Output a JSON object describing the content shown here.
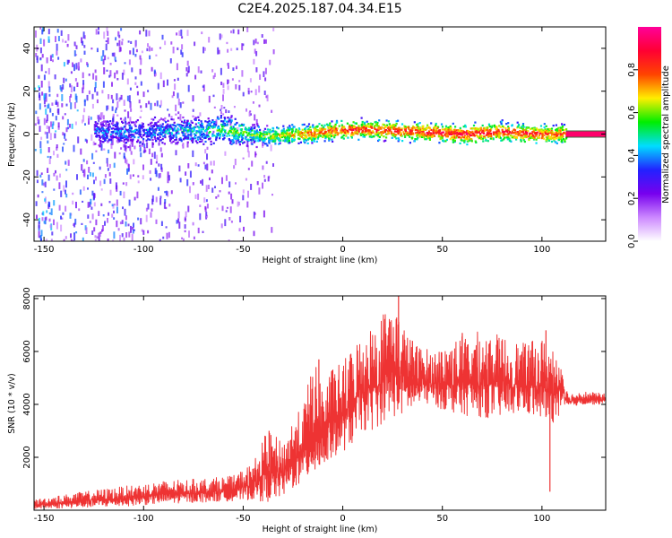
{
  "figure": {
    "title": "C2E4.2025.187.04.34.E15"
  },
  "chart_data": [
    {
      "type": "heatmap",
      "id": "spectrogram",
      "xlabel": "Height of straight line (km)",
      "ylabel": "Frequency (Hz)",
      "xlim": [
        -155,
        132
      ],
      "ylim": [
        -50,
        50
      ],
      "xticks": [
        -150,
        -100,
        -50,
        0,
        50,
        100
      ],
      "yticks": [
        -40,
        -20,
        0,
        20,
        40
      ],
      "colorbar": {
        "label": "Normalized spectral amplitude",
        "range": [
          0,
          1
        ],
        "ticks": [
          0.0,
          0.2,
          0.4,
          0.6,
          0.8
        ],
        "tick_labels": [
          "0.0",
          "0.2",
          "0.4",
          "0.6",
          "0.8"
        ],
        "colors": [
          "#ffffff",
          "#cc88ff",
          "#7700ee",
          "#2222ff",
          "#00ddff",
          "#00ee00",
          "#ffee00",
          "#ff4400",
          "#ff0033",
          "#ff0099"
        ]
      },
      "ridge": {
        "center_hz": [
          [
            -125,
            1
          ],
          [
            -100,
            1
          ],
          [
            -60,
            2
          ],
          [
            -40,
            -1
          ],
          [
            -20,
            0
          ],
          [
            0,
            2
          ],
          [
            20,
            2
          ],
          [
            40,
            1
          ],
          [
            60,
            0
          ],
          [
            80,
            1
          ],
          [
            100,
            0
          ],
          [
            112,
            0
          ]
        ],
        "peak_amplitude": [
          [
            -125,
            0.35
          ],
          [
            -90,
            0.4
          ],
          [
            -60,
            0.55
          ],
          [
            -40,
            0.6
          ],
          [
            -20,
            0.75
          ],
          [
            0,
            0.85
          ],
          [
            20,
            0.85
          ],
          [
            40,
            0.85
          ],
          [
            60,
            0.9
          ],
          [
            80,
            0.85
          ],
          [
            100,
            0.85
          ],
          [
            112,
            0.8
          ]
        ]
      },
      "steady_tone": {
        "x_range": [
          112,
          132
        ],
        "frequency_hz": 0,
        "amplitude": 0.95
      },
      "noise_region": {
        "x_range": [
          -155,
          -35
        ],
        "amplitude": [
          0.1,
          0.45
        ]
      }
    },
    {
      "type": "line",
      "id": "snr",
      "xlabel": "Height of straight line (km)",
      "ylabel": "SNR (10 * v/v)",
      "xlim": [
        -155,
        132
      ],
      "ylim": [
        0,
        8100
      ],
      "xticks": [
        -150,
        -100,
        -50,
        0,
        50,
        100
      ],
      "yticks": [
        2000,
        4000,
        6000,
        8000
      ],
      "color": "#ee3333",
      "envelope": {
        "x": [
          -155,
          -130,
          -110,
          -90,
          -70,
          -55,
          -45,
          -38,
          -30,
          -25,
          -20,
          -15,
          -10,
          -5,
          0,
          5,
          10,
          15,
          20,
          25,
          30,
          35,
          40,
          45,
          50,
          60,
          70,
          80,
          90,
          100,
          105,
          110,
          113,
          120,
          132
        ],
        "min": [
          50,
          100,
          150,
          250,
          300,
          350,
          400,
          300,
          500,
          800,
          1000,
          1300,
          1500,
          2000,
          2200,
          2500,
          3000,
          3000,
          3300,
          3500,
          3600,
          3800,
          4000,
          4000,
          3800,
          3600,
          3500,
          3500,
          3700,
          3400,
          3300,
          3500,
          3900,
          4000,
          4000
        ],
        "max": [
          400,
          700,
          900,
          1100,
          1200,
          1300,
          1800,
          3000,
          2600,
          3500,
          3900,
          5700,
          4800,
          5400,
          5600,
          6200,
          6800,
          7000,
          7500,
          8000,
          7100,
          6300,
          6200,
          6000,
          6200,
          6600,
          6800,
          6600,
          6300,
          6500,
          6200,
          6000,
          4400,
          4500,
          4400
        ]
      },
      "spikes": [
        [
          -37,
          3000
        ],
        [
          -12,
          5700
        ],
        [
          28,
          8100
        ],
        [
          35,
          6400
        ],
        [
          60,
          6700
        ],
        [
          102,
          6800
        ],
        [
          104,
          700
        ]
      ]
    }
  ]
}
